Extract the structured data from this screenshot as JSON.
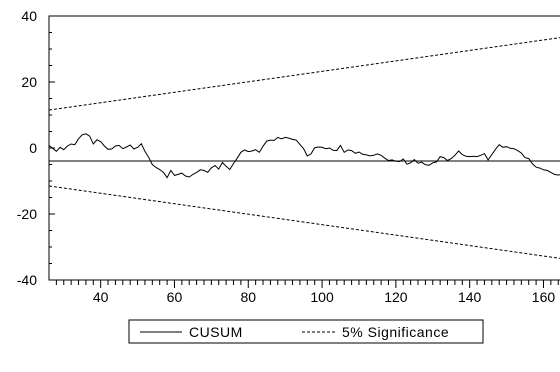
{
  "chart_data": {
    "type": "line",
    "title": "",
    "xlabel": "",
    "ylabel": "",
    "xlim": [
      26,
      168
    ],
    "ylim": [
      -40,
      40
    ],
    "x_ticks": [
      40,
      60,
      80,
      100,
      120,
      140,
      160
    ],
    "y_ticks": [
      40,
      20,
      0,
      -20,
      -40
    ],
    "zero_line": true,
    "grid": false,
    "legend_position": "bottom-center",
    "series": [
      {
        "name": "CUSUM",
        "style": "solid",
        "color": "#000000",
        "x": [
          26,
          28,
          29,
          30,
          31,
          32,
          33,
          34,
          35,
          36,
          37,
          38,
          39,
          40,
          41,
          42,
          43,
          44,
          45,
          46,
          47,
          48,
          49,
          50,
          51,
          52,
          53,
          54,
          55,
          56,
          57,
          58,
          59,
          60,
          61,
          62,
          63,
          64,
          65,
          66,
          67,
          68,
          69,
          70,
          71,
          72,
          73,
          74,
          75,
          76,
          77,
          78,
          79,
          80,
          81,
          82,
          83,
          84,
          85,
          86,
          87,
          88,
          89,
          90,
          91,
          92,
          93,
          94,
          95,
          96,
          97,
          98,
          99,
          100,
          101,
          102,
          103,
          104,
          105,
          106,
          107,
          108,
          109,
          110,
          111,
          112,
          113,
          114,
          115,
          116,
          117,
          118,
          119,
          120,
          121,
          122,
          123,
          124,
          125,
          126,
          127,
          128,
          129,
          130,
          131,
          132,
          133,
          134,
          135,
          136,
          137,
          138,
          139,
          140,
          141,
          142,
          143,
          144,
          145,
          146,
          147,
          148,
          149,
          150,
          151,
          152,
          153,
          154,
          155,
          156,
          157,
          158,
          159,
          160,
          161,
          162,
          163,
          164,
          165,
          166,
          167,
          168
        ],
        "y": [
          0.8,
          -1.0,
          0.2,
          -0.5,
          0.6,
          1.2,
          1.0,
          2.8,
          4.0,
          4.3,
          3.6,
          1.2,
          2.5,
          1.9,
          0.6,
          -0.4,
          -0.3,
          0.6,
          0.8,
          -0.2,
          0.3,
          0.9,
          -0.3,
          0.2,
          1.3,
          -1.0,
          -2.8,
          -5.0,
          -5.9,
          -6.5,
          -7.4,
          -9.0,
          -6.8,
          -8.3,
          -8.0,
          -7.6,
          -8.5,
          -8.8,
          -8.0,
          -7.4,
          -6.6,
          -6.8,
          -7.4,
          -6.0,
          -5.3,
          -6.4,
          -4.4,
          -5.5,
          -6.5,
          -4.7,
          -3.1,
          -1.3,
          -0.6,
          -1.1,
          -0.9,
          -0.5,
          -1.3,
          0.5,
          2.1,
          2.4,
          2.3,
          3.2,
          2.8,
          3.2,
          3.0,
          2.6,
          2.4,
          1.1,
          -0.2,
          -2.4,
          -1.8,
          0.1,
          0.3,
          0.2,
          -0.2,
          0.0,
          -0.7,
          -0.8,
          0.8,
          -1.3,
          -0.6,
          -0.8,
          -1.6,
          -1.2,
          -1.9,
          -2.1,
          -2.4,
          -2.2,
          -1.8,
          -2.2,
          -3.1,
          -3.8,
          -3.6,
          -4.0,
          -4.1,
          -3.3,
          -4.9,
          -4.5,
          -3.5,
          -4.6,
          -4.3,
          -5.1,
          -5.2,
          -4.5,
          -4.2,
          -2.6,
          -2.9,
          -3.8,
          -3.2,
          -2.2,
          -0.9,
          -2.0,
          -2.5,
          -2.6,
          -2.5,
          -2.6,
          -2.2,
          -1.7,
          -3.6,
          -2.0,
          -0.4,
          1.0,
          0.2,
          0.4,
          -0.1,
          -0.2,
          -0.8,
          -1.5,
          -2.9,
          -3.2,
          -4.8,
          -5.8,
          -6.1,
          -6.6,
          -6.8,
          -7.4,
          -8.0,
          -8.2,
          -7.9,
          -8.2,
          -8.5,
          -9.8
        ]
      },
      {
        "name": "5% Significance",
        "style": "dashed",
        "color": "#000000",
        "upper": {
          "x": [
            26,
            168
          ],
          "y": [
            11.5,
            34.0
          ]
        },
        "lower": {
          "x": [
            26,
            168
          ],
          "y": [
            -11.5,
            -34.0
          ]
        }
      }
    ]
  },
  "legend": {
    "items": [
      {
        "label": "CUSUM",
        "style": "solid"
      },
      {
        "label": "5% Significance",
        "style": "dashed"
      }
    ]
  }
}
